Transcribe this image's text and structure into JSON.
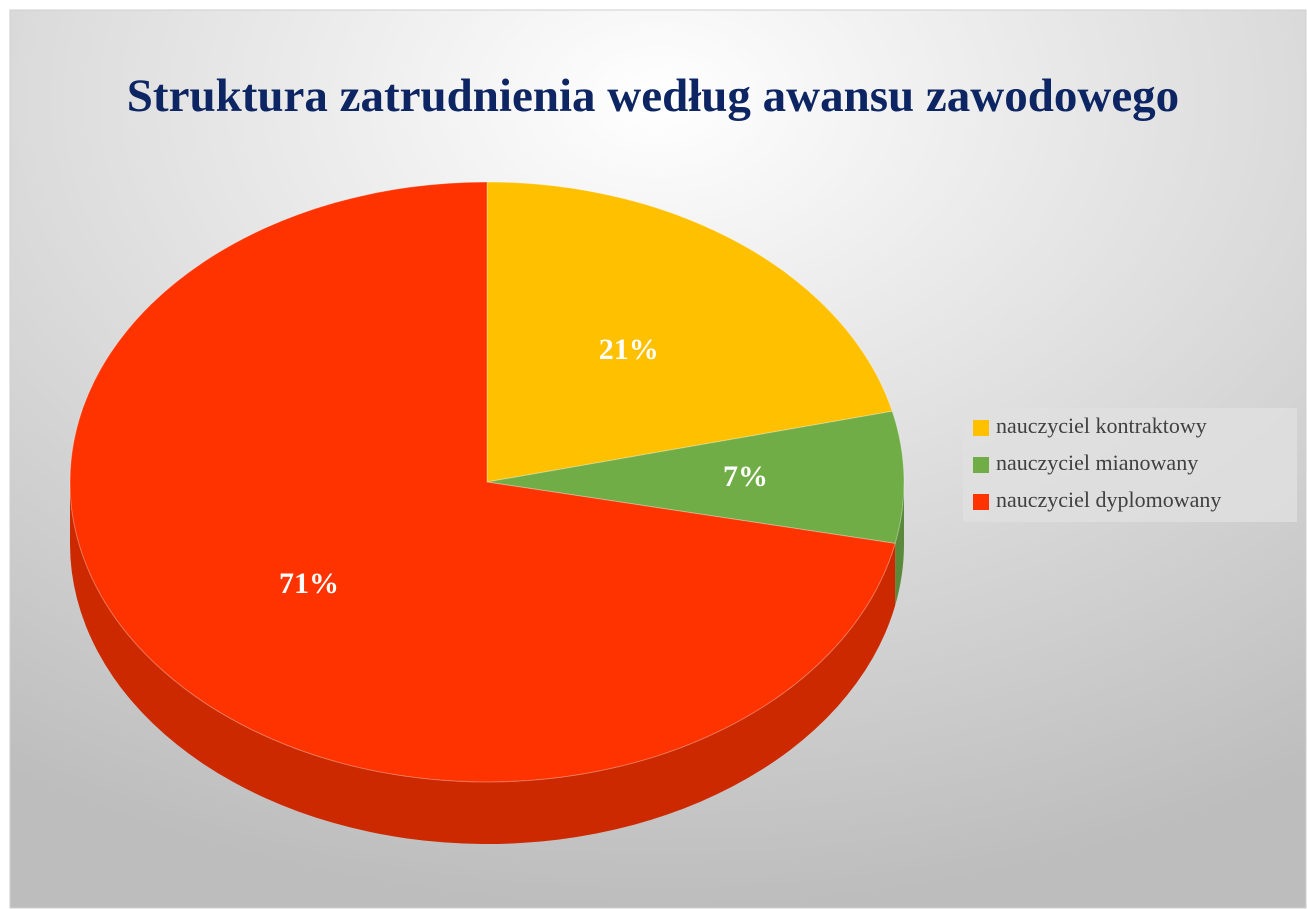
{
  "chart_data": {
    "type": "pie",
    "title": "Struktura zatrudnienia według awansu zawodowego",
    "categories": [
      "nauczyciel kontraktowy",
      "nauczyciel mianowany",
      "nauczyciel dyplomowany"
    ],
    "values": [
      21,
      7,
      71
    ],
    "value_labels": [
      "21%",
      "7%",
      "71%"
    ],
    "colors": [
      "#ffc000",
      "#70ad47",
      "#ff3300"
    ],
    "legend": "right"
  }
}
